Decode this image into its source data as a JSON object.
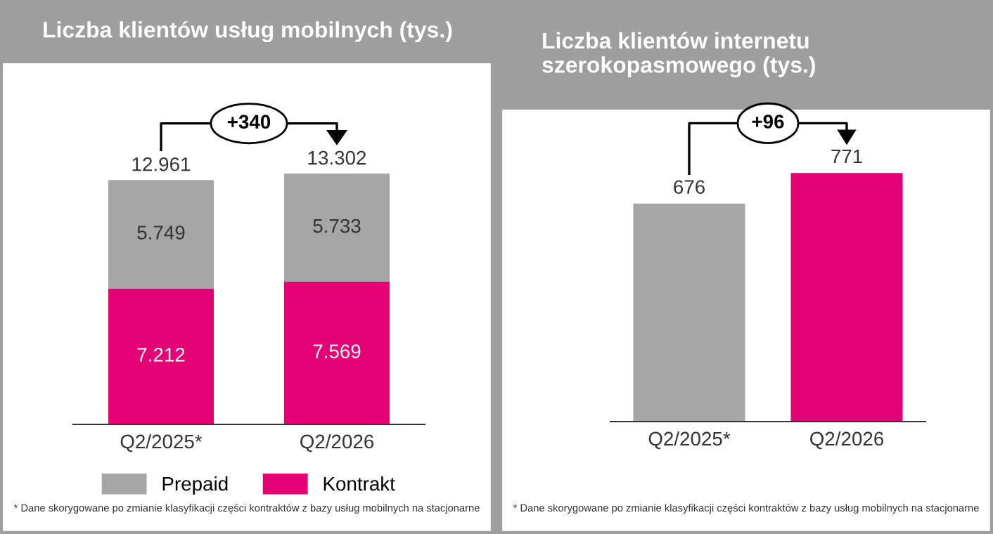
{
  "chart_data": [
    {
      "type": "bar",
      "title": "Liczba klientów usług mobilnych (tys.)",
      "categories": [
        "Q2/2025*",
        "Q2/2026"
      ],
      "stacked": true,
      "series": [
        {
          "name": "Kontrakt",
          "color": "#e20074",
          "values": [
            7212,
            7569
          ],
          "value_labels": [
            "7.212",
            "7.569"
          ]
        },
        {
          "name": "Prepaid",
          "color": "#a6a6a6",
          "values": [
            5749,
            5733
          ],
          "value_labels": [
            "5.749",
            "5.733"
          ]
        }
      ],
      "totals": [
        "12.961",
        "13.302"
      ],
      "legend": "bottom",
      "annotations": [
        "+340",
        "* Dane skorygowane po zmianie klasyfikacji części kontraktów z bazy usług mobilnych na stacjonarne"
      ]
    },
    {
      "type": "bar",
      "title": "Liczba klientów internetu szerokopasmowego (tys.)",
      "categories": [
        "Q2/2025*",
        "Q2/2026"
      ],
      "values": [
        676,
        771
      ],
      "colors": [
        "#a6a6a6",
        "#e20074"
      ],
      "data_labels": true,
      "annotations": [
        "+96",
        "* Dane skorygowane po zmianie klasyfikacji części kontraktów z bazy usług mobilnych na stacjonarne"
      ]
    }
  ]
}
